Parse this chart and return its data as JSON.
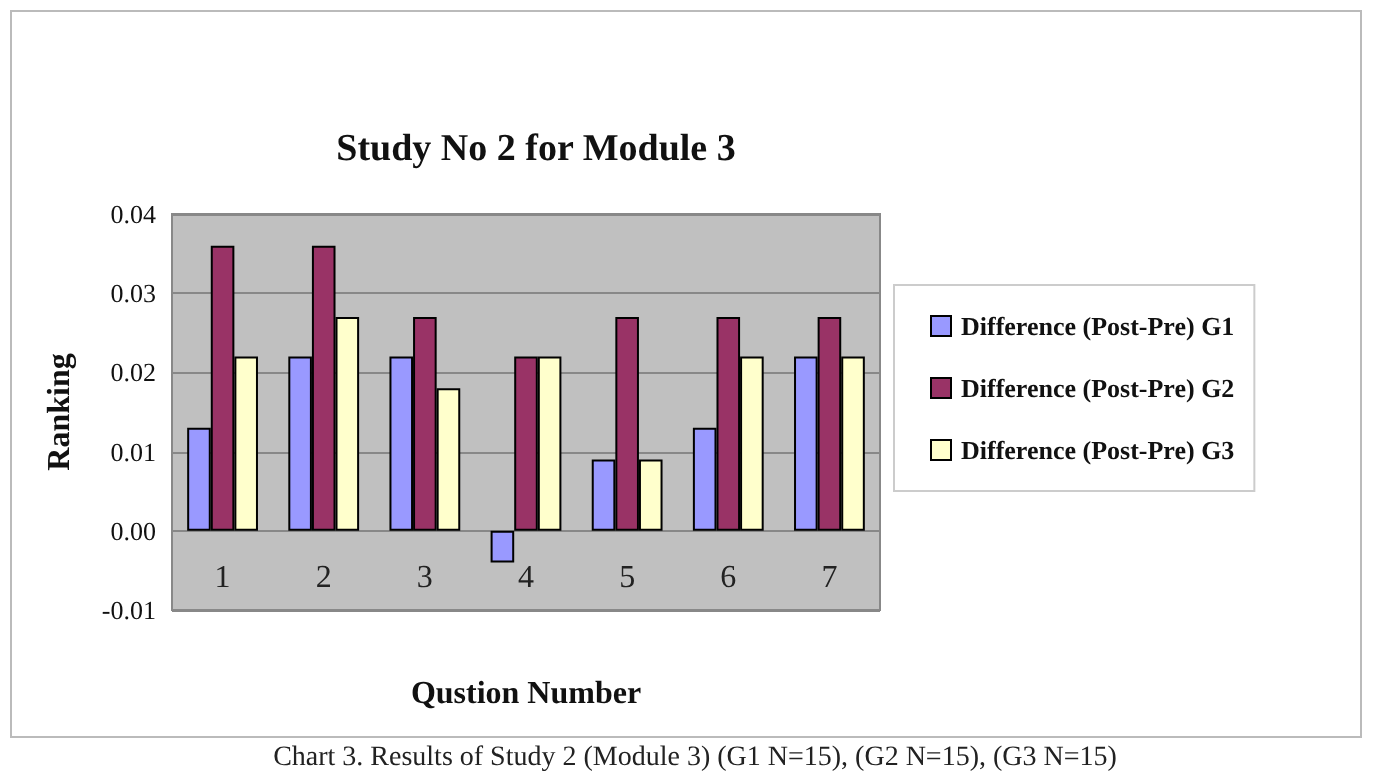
{
  "chart_data": {
    "type": "bar",
    "title": "Study No 2 for Module 3",
    "xlabel": "Qustion Number",
    "ylabel": "Ranking",
    "categories": [
      "1",
      "2",
      "3",
      "4",
      "5",
      "6",
      "7"
    ],
    "series": [
      {
        "name": "Difference (Post-Pre) G1",
        "color": "#9999ff",
        "values": [
          0.013,
          0.022,
          0.022,
          -0.004,
          0.009,
          0.013,
          0.022
        ]
      },
      {
        "name": "Difference (Post-Pre) G2",
        "color": "#993366",
        "values": [
          0.036,
          0.036,
          0.027,
          0.022,
          0.027,
          0.027,
          0.027
        ]
      },
      {
        "name": "Difference (Post-Pre) G3",
        "color": "#ffffcc",
        "values": [
          0.022,
          0.027,
          0.018,
          0.022,
          0.009,
          0.022,
          0.022
        ]
      }
    ],
    "ylim": [
      -0.01,
      0.04
    ],
    "yticks": [
      {
        "value": -0.01,
        "label": "-0.01"
      },
      {
        "value": 0,
        "label": "0.00"
      },
      {
        "value": 0.01,
        "label": "0.01"
      },
      {
        "value": 0.02,
        "label": "0.02"
      },
      {
        "value": 0.03,
        "label": "0.03"
      },
      {
        "value": 0.04,
        "label": "0.04"
      }
    ],
    "grid": "y",
    "legend": "right",
    "annotations": [
      "Chart 3. Results of Study 2 (Module 3) (G1 N=15), (G2 N=15), (G3 N=15)"
    ]
  }
}
